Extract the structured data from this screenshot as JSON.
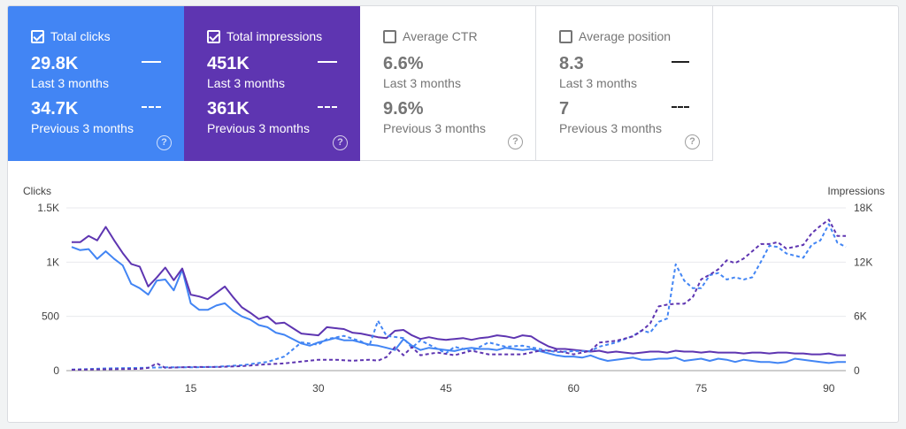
{
  "metrics": [
    {
      "label": "Total clicks",
      "checked": true,
      "current_value": "29.8K",
      "current_period": "Last 3 months",
      "previous_value": "34.7K",
      "previous_period": "Previous 3 months",
      "help": "?"
    },
    {
      "label": "Total impressions",
      "checked": true,
      "current_value": "451K",
      "current_period": "Last 3 months",
      "previous_value": "361K",
      "previous_period": "Previous 3 months",
      "help": "?"
    },
    {
      "label": "Average CTR",
      "checked": false,
      "current_value": "6.6%",
      "current_period": "Last 3 months",
      "previous_value": "9.6%",
      "previous_period": "Previous 3 months",
      "help": "?"
    },
    {
      "label": "Average position",
      "checked": false,
      "current_value": "8.3",
      "current_period": "Last 3 months",
      "previous_value": "7",
      "previous_period": "Previous 3 months",
      "help": "?"
    }
  ],
  "colors": {
    "clicks": "#4285f4",
    "impressions": "#5e35b1",
    "grid": "#e8eaed"
  },
  "chart_data": {
    "type": "line",
    "ylabel": "Clicks",
    "y2label": "Impressions",
    "ylim": [
      0,
      1500
    ],
    "y2lim": [
      0,
      18000
    ],
    "y_ticks": [
      "0",
      "500",
      "1K",
      "1.5K"
    ],
    "y2_ticks": [
      "0",
      "6K",
      "12K",
      "18K"
    ],
    "x_ticks": [
      "15",
      "30",
      "45",
      "60",
      "75",
      "90"
    ],
    "xlim": [
      1,
      92
    ],
    "x_tick_values": [
      15,
      30,
      45,
      60,
      75,
      90
    ],
    "grid": true,
    "series": [
      {
        "key": "clicks_current",
        "axis": "left",
        "style": "solid",
        "color": "#4285f4",
        "points": [
          [
            1,
            1140
          ],
          [
            2,
            1110
          ],
          [
            3,
            1120
          ],
          [
            4,
            1030
          ],
          [
            5,
            1100
          ],
          [
            6,
            1030
          ],
          [
            7,
            970
          ],
          [
            8,
            800
          ],
          [
            9,
            760
          ],
          [
            10,
            700
          ],
          [
            11,
            830
          ],
          [
            12,
            840
          ],
          [
            13,
            740
          ],
          [
            14,
            930
          ],
          [
            15,
            620
          ],
          [
            16,
            560
          ],
          [
            17,
            560
          ],
          [
            18,
            600
          ],
          [
            19,
            620
          ],
          [
            20,
            550
          ],
          [
            21,
            500
          ],
          [
            22,
            470
          ],
          [
            23,
            420
          ],
          [
            24,
            400
          ],
          [
            25,
            350
          ],
          [
            26,
            330
          ],
          [
            27,
            290
          ],
          [
            28,
            250
          ],
          [
            29,
            230
          ],
          [
            30,
            260
          ],
          [
            31,
            280
          ],
          [
            32,
            300
          ],
          [
            33,
            280
          ],
          [
            34,
            280
          ],
          [
            35,
            260
          ],
          [
            36,
            240
          ],
          [
            37,
            230
          ],
          [
            38,
            210
          ],
          [
            39,
            190
          ],
          [
            40,
            290
          ],
          [
            41,
            230
          ],
          [
            42,
            190
          ],
          [
            43,
            210
          ],
          [
            44,
            200
          ],
          [
            45,
            190
          ],
          [
            46,
            180
          ],
          [
            47,
            200
          ],
          [
            48,
            210
          ],
          [
            49,
            200
          ],
          [
            50,
            200
          ],
          [
            51,
            190
          ],
          [
            52,
            210
          ],
          [
            53,
            200
          ],
          [
            54,
            190
          ],
          [
            55,
            200
          ],
          [
            56,
            180
          ],
          [
            57,
            160
          ],
          [
            58,
            140
          ],
          [
            59,
            130
          ],
          [
            60,
            130
          ],
          [
            61,
            120
          ],
          [
            62,
            140
          ],
          [
            63,
            110
          ],
          [
            64,
            90
          ],
          [
            65,
            100
          ],
          [
            66,
            110
          ],
          [
            67,
            120
          ],
          [
            68,
            100
          ],
          [
            69,
            100
          ],
          [
            70,
            110
          ],
          [
            71,
            110
          ],
          [
            72,
            120
          ],
          [
            73,
            90
          ],
          [
            74,
            100
          ],
          [
            75,
            110
          ],
          [
            76,
            90
          ],
          [
            77,
            110
          ],
          [
            78,
            100
          ],
          [
            79,
            80
          ],
          [
            80,
            100
          ],
          [
            81,
            90
          ],
          [
            82,
            80
          ],
          [
            83,
            80
          ],
          [
            84,
            70
          ],
          [
            85,
            80
          ],
          [
            86,
            110
          ],
          [
            87,
            100
          ],
          [
            88,
            90
          ],
          [
            89,
            80
          ],
          [
            90,
            70
          ],
          [
            91,
            80
          ],
          [
            92,
            80
          ]
        ]
      },
      {
        "key": "impressions_current",
        "axis": "right",
        "style": "solid",
        "color": "#5e35b1",
        "points": [
          [
            1,
            14200
          ],
          [
            2,
            14200
          ],
          [
            3,
            14900
          ],
          [
            4,
            14400
          ],
          [
            5,
            15900
          ],
          [
            6,
            14400
          ],
          [
            7,
            13000
          ],
          [
            8,
            11800
          ],
          [
            9,
            11500
          ],
          [
            10,
            9300
          ],
          [
            11,
            10300
          ],
          [
            12,
            11400
          ],
          [
            13,
            10000
          ],
          [
            14,
            11300
          ],
          [
            15,
            8400
          ],
          [
            16,
            8200
          ],
          [
            17,
            7900
          ],
          [
            18,
            8600
          ],
          [
            19,
            9300
          ],
          [
            20,
            8100
          ],
          [
            21,
            7000
          ],
          [
            22,
            6400
          ],
          [
            23,
            5700
          ],
          [
            24,
            6000
          ],
          [
            25,
            5200
          ],
          [
            26,
            5300
          ],
          [
            27,
            4700
          ],
          [
            28,
            4100
          ],
          [
            29,
            4000
          ],
          [
            30,
            3900
          ],
          [
            31,
            4800
          ],
          [
            32,
            4700
          ],
          [
            33,
            4600
          ],
          [
            34,
            4200
          ],
          [
            35,
            4100
          ],
          [
            36,
            3900
          ],
          [
            37,
            3700
          ],
          [
            38,
            3600
          ],
          [
            39,
            4400
          ],
          [
            40,
            4500
          ],
          [
            41,
            3900
          ],
          [
            42,
            3500
          ],
          [
            43,
            3700
          ],
          [
            44,
            3500
          ],
          [
            45,
            3400
          ],
          [
            46,
            3500
          ],
          [
            47,
            3600
          ],
          [
            48,
            3400
          ],
          [
            49,
            3600
          ],
          [
            50,
            3700
          ],
          [
            51,
            3900
          ],
          [
            52,
            3800
          ],
          [
            53,
            3600
          ],
          [
            54,
            3900
          ],
          [
            55,
            3800
          ],
          [
            56,
            3200
          ],
          [
            57,
            2700
          ],
          [
            58,
            2400
          ],
          [
            59,
            2400
          ],
          [
            60,
            2300
          ],
          [
            61,
            2200
          ],
          [
            62,
            2100
          ],
          [
            63,
            2200
          ],
          [
            64,
            2000
          ],
          [
            65,
            2100
          ],
          [
            66,
            2000
          ],
          [
            67,
            1900
          ],
          [
            68,
            2000
          ],
          [
            69,
            2100
          ],
          [
            70,
            2100
          ],
          [
            71,
            2000
          ],
          [
            72,
            2200
          ],
          [
            73,
            2100
          ],
          [
            74,
            2100
          ],
          [
            75,
            2000
          ],
          [
            76,
            2100
          ],
          [
            77,
            2000
          ],
          [
            78,
            2000
          ],
          [
            79,
            2000
          ],
          [
            80,
            1900
          ],
          [
            81,
            2000
          ],
          [
            82,
            2000
          ],
          [
            83,
            1900
          ],
          [
            84,
            2000
          ],
          [
            85,
            2000
          ],
          [
            86,
            1900
          ],
          [
            87,
            1900
          ],
          [
            88,
            1800
          ],
          [
            89,
            1800
          ],
          [
            90,
            1900
          ],
          [
            91,
            1700
          ],
          [
            92,
            1700
          ]
        ]
      },
      {
        "key": "clicks_previous",
        "axis": "left",
        "style": "dashed",
        "color": "#4285f4",
        "points": [
          [
            1,
            10
          ],
          [
            5,
            20
          ],
          [
            9,
            25
          ],
          [
            12,
            30
          ],
          [
            15,
            30
          ],
          [
            18,
            35
          ],
          [
            21,
            50
          ],
          [
            24,
            80
          ],
          [
            26,
            130
          ],
          [
            28,
            260
          ],
          [
            30,
            240
          ],
          [
            31,
            290
          ],
          [
            33,
            320
          ],
          [
            35,
            270
          ],
          [
            36,
            230
          ],
          [
            37,
            460
          ],
          [
            38,
            320
          ],
          [
            40,
            300
          ],
          [
            41,
            210
          ],
          [
            42,
            280
          ],
          [
            44,
            200
          ],
          [
            45,
            160
          ],
          [
            46,
            220
          ],
          [
            48,
            180
          ],
          [
            50,
            260
          ],
          [
            52,
            220
          ],
          [
            54,
            230
          ],
          [
            56,
            200
          ],
          [
            58,
            170
          ],
          [
            60,
            180
          ],
          [
            61,
            180
          ],
          [
            62,
            180
          ],
          [
            63,
            220
          ],
          [
            65,
            260
          ],
          [
            67,
            320
          ],
          [
            68,
            370
          ],
          [
            69,
            350
          ],
          [
            70,
            450
          ],
          [
            71,
            480
          ],
          [
            72,
            980
          ],
          [
            73,
            830
          ],
          [
            74,
            760
          ],
          [
            75,
            760
          ],
          [
            76,
            880
          ],
          [
            77,
            900
          ],
          [
            78,
            840
          ],
          [
            79,
            860
          ],
          [
            80,
            840
          ],
          [
            81,
            860
          ],
          [
            82,
            1000
          ],
          [
            83,
            1150
          ],
          [
            84,
            1140
          ],
          [
            85,
            1080
          ],
          [
            86,
            1060
          ],
          [
            87,
            1040
          ],
          [
            88,
            1160
          ],
          [
            89,
            1200
          ],
          [
            90,
            1350
          ],
          [
            91,
            1180
          ],
          [
            92,
            1140
          ]
        ]
      },
      {
        "key": "impressions_previous",
        "axis": "right",
        "style": "dashed",
        "color": "#5e35b1",
        "points": [
          [
            1,
            100
          ],
          [
            5,
            150
          ],
          [
            9,
            200
          ],
          [
            10,
            300
          ],
          [
            11,
            800
          ],
          [
            12,
            300
          ],
          [
            15,
            400
          ],
          [
            18,
            400
          ],
          [
            21,
            500
          ],
          [
            24,
            700
          ],
          [
            26,
            800
          ],
          [
            28,
            1000
          ],
          [
            30,
            1200
          ],
          [
            32,
            1200
          ],
          [
            34,
            1100
          ],
          [
            36,
            1200
          ],
          [
            37,
            1100
          ],
          [
            38,
            1500
          ],
          [
            39,
            2600
          ],
          [
            40,
            1700
          ],
          [
            41,
            2600
          ],
          [
            42,
            1700
          ],
          [
            44,
            2000
          ],
          [
            46,
            1700
          ],
          [
            48,
            2200
          ],
          [
            50,
            1800
          ],
          [
            52,
            1800
          ],
          [
            54,
            1800
          ],
          [
            56,
            2200
          ],
          [
            58,
            2200
          ],
          [
            60,
            1800
          ],
          [
            62,
            2200
          ],
          [
            63,
            3100
          ],
          [
            65,
            3300
          ],
          [
            67,
            3800
          ],
          [
            68,
            4400
          ],
          [
            69,
            5200
          ],
          [
            70,
            7100
          ],
          [
            71,
            7300
          ],
          [
            72,
            7400
          ],
          [
            73,
            7400
          ],
          [
            74,
            8100
          ],
          [
            75,
            10100
          ],
          [
            76,
            10600
          ],
          [
            77,
            11200
          ],
          [
            78,
            12200
          ],
          [
            79,
            11900
          ],
          [
            80,
            12400
          ],
          [
            81,
            13200
          ],
          [
            82,
            14000
          ],
          [
            83,
            14000
          ],
          [
            84,
            14200
          ],
          [
            85,
            13500
          ],
          [
            86,
            13700
          ],
          [
            87,
            13900
          ],
          [
            88,
            15200
          ],
          [
            89,
            16000
          ],
          [
            90,
            16700
          ],
          [
            91,
            14900
          ],
          [
            92,
            14900
          ]
        ]
      }
    ]
  }
}
